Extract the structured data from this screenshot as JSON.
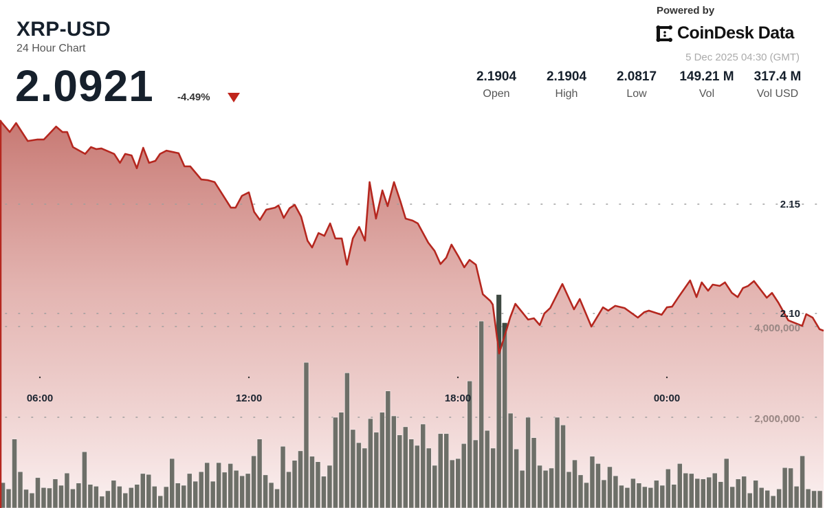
{
  "header": {
    "symbol": "XRP-USD",
    "subtitle": "24 Hour Chart",
    "price": "2.0921",
    "change": "-4.49%",
    "change_direction": "down",
    "change_color": "#c0251c"
  },
  "branding": {
    "powered_by": "Powered by",
    "brand": "CoinDesk Data",
    "logo_icon": "coindesk-logo-icon",
    "timestamp": "5 Dec 2025 04:30 (GMT)"
  },
  "stats": [
    {
      "value": "2.1904",
      "label": "Open"
    },
    {
      "value": "2.1904",
      "label": "High"
    },
    {
      "value": "2.0817",
      "label": "Low"
    },
    {
      "value": "149.21 M",
      "label": "Vol"
    },
    {
      "value": "317.4 M",
      "label": "Vol USD"
    }
  ],
  "chart_data": {
    "type": "area",
    "line_color": "#b5271f",
    "volume_color": "#6d6f68",
    "grid": "dotted-horizontal",
    "x_ticks": [
      "06:00",
      "12:00",
      "18:00",
      "00:00"
    ],
    "price_ticks": [
      {
        "value": 2.15,
        "label": "2.15"
      },
      {
        "value": 2.1,
        "label": "2.10"
      }
    ],
    "volume_ticks": [
      {
        "value": 4000000,
        "label": "4,000,000"
      },
      {
        "value": 2000000,
        "label": "2,000,000"
      }
    ],
    "price_series": [
      {
        "t": "04:51",
        "p": 2.1884
      },
      {
        "t": "05:08",
        "p": 2.183
      },
      {
        "t": "05:19",
        "p": 2.1871
      },
      {
        "t": "05:39",
        "p": 2.1789
      },
      {
        "t": "05:56",
        "p": 2.1796
      },
      {
        "t": "06:07",
        "p": 2.1796
      },
      {
        "t": "06:28",
        "p": 2.1855
      },
      {
        "t": "06:39",
        "p": 2.183
      },
      {
        "t": "06:47",
        "p": 2.183
      },
      {
        "t": "06:57",
        "p": 2.1761
      },
      {
        "t": "07:18",
        "p": 2.173
      },
      {
        "t": "07:28",
        "p": 2.1761
      },
      {
        "t": "07:37",
        "p": 2.1752
      },
      {
        "t": "07:46",
        "p": 2.1755
      },
      {
        "t": "08:08",
        "p": 2.173
      },
      {
        "t": "08:18",
        "p": 2.1689
      },
      {
        "t": "08:27",
        "p": 2.173
      },
      {
        "t": "08:38",
        "p": 2.1723
      },
      {
        "t": "08:47",
        "p": 2.1664
      },
      {
        "t": "08:58",
        "p": 2.1758
      },
      {
        "t": "09:08",
        "p": 2.1689
      },
      {
        "t": "09:19",
        "p": 2.1698
      },
      {
        "t": "09:27",
        "p": 2.173
      },
      {
        "t": "09:38",
        "p": 2.1745
      },
      {
        "t": "09:59",
        "p": 2.1733
      },
      {
        "t": "10:09",
        "p": 2.1673
      },
      {
        "t": "10:19",
        "p": 2.1673
      },
      {
        "t": "10:38",
        "p": 2.1613
      },
      {
        "t": "10:49",
        "p": 2.161
      },
      {
        "t": "11:01",
        "p": 2.1601
      },
      {
        "t": "11:29",
        "p": 2.1484
      },
      {
        "t": "11:37",
        "p": 2.1484
      },
      {
        "t": "11:48",
        "p": 2.1538
      },
      {
        "t": "12:00",
        "p": 2.1554
      },
      {
        "t": "12:09",
        "p": 2.1465
      },
      {
        "t": "12:19",
        "p": 2.1428
      },
      {
        "t": "12:30",
        "p": 2.1475
      },
      {
        "t": "12:45",
        "p": 2.1484
      },
      {
        "t": "12:51",
        "p": 2.1494
      },
      {
        "t": "13:00",
        "p": 2.1437
      },
      {
        "t": "13:10",
        "p": 2.1481
      },
      {
        "t": "13:19",
        "p": 2.1497
      },
      {
        "t": "13:30",
        "p": 2.1443
      },
      {
        "t": "13:41",
        "p": 2.1333
      },
      {
        "t": "13:49",
        "p": 2.1302
      },
      {
        "t": "14:00",
        "p": 2.1368
      },
      {
        "t": "14:10",
        "p": 2.1355
      },
      {
        "t": "14:20",
        "p": 2.1412
      },
      {
        "t": "14:29",
        "p": 2.1343
      },
      {
        "t": "14:40",
        "p": 2.1343
      },
      {
        "t": "14:49",
        "p": 2.1223
      },
      {
        "t": "14:59",
        "p": 2.1343
      },
      {
        "t": "15:10",
        "p": 2.1396
      },
      {
        "t": "15:20",
        "p": 2.1333
      },
      {
        "t": "15:28",
        "p": 2.1601
      },
      {
        "t": "15:39",
        "p": 2.1434
      },
      {
        "t": "15:50",
        "p": 2.1563
      },
      {
        "t": "15:59",
        "p": 2.1491
      },
      {
        "t": "16:10",
        "p": 2.1601
      },
      {
        "t": "16:21",
        "p": 2.1513
      },
      {
        "t": "16:30",
        "p": 2.1434
      },
      {
        "t": "16:42",
        "p": 2.1425
      },
      {
        "t": "16:51",
        "p": 2.1412
      },
      {
        "t": "17:09",
        "p": 2.1324
      },
      {
        "t": "17:20",
        "p": 2.1286
      },
      {
        "t": "17:30",
        "p": 2.1226
      },
      {
        "t": "17:40",
        "p": 2.1255
      },
      {
        "t": "17:49",
        "p": 2.1315
      },
      {
        "t": "18:01",
        "p": 2.1261
      },
      {
        "t": "18:11",
        "p": 2.1211
      },
      {
        "t": "18:20",
        "p": 2.1245
      },
      {
        "t": "18:31",
        "p": 2.1223
      },
      {
        "t": "18:43",
        "p": 2.1088
      },
      {
        "t": "18:56",
        "p": 2.1057
      },
      {
        "t": "19:00",
        "p": 2.1041
      },
      {
        "t": "19:11",
        "p": 2.0817
      },
      {
        "t": "19:22",
        "p": 2.0909
      },
      {
        "t": "19:30",
        "p": 2.0981
      },
      {
        "t": "19:39",
        "p": 2.1044
      },
      {
        "t": "20:01",
        "p": 2.0972
      },
      {
        "t": "20:11",
        "p": 2.0978
      },
      {
        "t": "20:21",
        "p": 2.0947
      },
      {
        "t": "20:29",
        "p": 2.1
      },
      {
        "t": "20:39",
        "p": 2.1025
      },
      {
        "t": "21:00",
        "p": 2.1135
      },
      {
        "t": "21:20",
        "p": 2.1019
      },
      {
        "t": "21:30",
        "p": 2.1066
      },
      {
        "t": "21:50",
        "p": 2.094
      },
      {
        "t": "22:10",
        "p": 2.1028
      },
      {
        "t": "22:19",
        "p": 2.1013
      },
      {
        "t": "22:31",
        "p": 2.1035
      },
      {
        "t": "22:47",
        "p": 2.1025
      },
      {
        "t": "23:10",
        "p": 2.0981
      },
      {
        "t": "23:21",
        "p": 2.1006
      },
      {
        "t": "23:29",
        "p": 2.1013
      },
      {
        "t": "23:51",
        "p": 2.0994
      },
      {
        "t": "00:00",
        "p": 2.1028
      },
      {
        "t": "00:09",
        "p": 2.1031
      },
      {
        "t": "00:20",
        "p": 2.1075
      },
      {
        "t": "00:40",
        "p": 2.1151
      },
      {
        "t": "00:51",
        "p": 2.1075
      },
      {
        "t": "01:00",
        "p": 2.1142
      },
      {
        "t": "01:11",
        "p": 2.1104
      },
      {
        "t": "01:19",
        "p": 2.1132
      },
      {
        "t": "01:31",
        "p": 2.1126
      },
      {
        "t": "01:40",
        "p": 2.1142
      },
      {
        "t": "01:52",
        "p": 2.1094
      },
      {
        "t": "02:02",
        "p": 2.1075
      },
      {
        "t": "02:11",
        "p": 2.1116
      },
      {
        "t": "02:20",
        "p": 2.1126
      },
      {
        "t": "02:30",
        "p": 2.1148
      },
      {
        "t": "02:52",
        "p": 2.1072
      },
      {
        "t": "03:01",
        "p": 2.1094
      },
      {
        "t": "03:12",
        "p": 2.105
      },
      {
        "t": "03:29",
        "p": 2.0969
      },
      {
        "t": "03:53",
        "p": 2.0943
      },
      {
        "t": "04:00",
        "p": 2.0997
      },
      {
        "t": "04:11",
        "p": 2.0981
      },
      {
        "t": "04:23",
        "p": 2.0928
      },
      {
        "t": "04:30",
        "p": 2.0921
      }
    ],
    "volume_series": [
      560000,
      420000,
      1520000,
      800000,
      410000,
      330000,
      670000,
      450000,
      440000,
      640000,
      500000,
      770000,
      420000,
      550000,
      1240000,
      520000,
      480000,
      260000,
      380000,
      610000,
      480000,
      330000,
      450000,
      520000,
      760000,
      740000,
      480000,
      270000,
      470000,
      1090000,
      550000,
      500000,
      760000,
      590000,
      800000,
      1000000,
      590000,
      1000000,
      790000,
      980000,
      830000,
      710000,
      760000,
      1150000,
      1520000,
      730000,
      560000,
      420000,
      1360000,
      800000,
      1050000,
      1260000,
      3210000,
      1140000,
      1020000,
      700000,
      940000,
      2000000,
      2110000,
      2980000,
      1730000,
      1440000,
      1320000,
      1970000,
      1670000,
      2110000,
      2580000,
      2030000,
      1610000,
      1790000,
      1520000,
      1380000,
      1850000,
      1320000,
      940000,
      1640000,
      1640000,
      1060000,
      1090000,
      1420000,
      2800000,
      1500000,
      4120000,
      1710000,
      1320000,
      4700000,
      4080000,
      2090000,
      1300000,
      830000,
      2000000,
      1550000,
      940000,
      830000,
      880000,
      2000000,
      1830000,
      800000,
      1060000,
      730000,
      560000,
      1140000,
      980000,
      620000,
      910000,
      710000,
      500000,
      450000,
      650000,
      550000,
      470000,
      450000,
      610000,
      500000,
      860000,
      520000,
      980000,
      770000,
      760000,
      650000,
      640000,
      680000,
      770000,
      580000,
      1090000,
      470000,
      640000,
      700000,
      330000,
      610000,
      450000,
      390000,
      270000,
      420000,
      890000,
      880000,
      480000,
      1150000,
      420000,
      380000,
      380000
    ]
  }
}
